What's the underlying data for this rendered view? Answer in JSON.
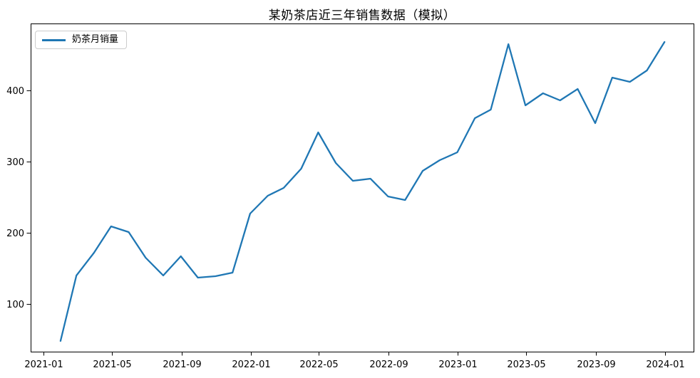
{
  "page": {
    "background": "#ffffff"
  },
  "chart_data": {
    "type": "line",
    "title": "某奶茶店近三年销售数据（模拟）",
    "xlabel": "",
    "ylabel": "",
    "grid": false,
    "legend_position": "upper-left",
    "line_color": "#1f77b4",
    "y_ticks": [
      100,
      200,
      300,
      400
    ],
    "x_ticks": [
      "2021-01",
      "2021-05",
      "2021-09",
      "2022-01",
      "2022-05",
      "2022-09",
      "2023-01",
      "2023-05",
      "2023-09",
      "2024-01"
    ],
    "ylim": [
      33,
      494
    ],
    "x": [
      "2021-01",
      "2021-02",
      "2021-03",
      "2021-04",
      "2021-05",
      "2021-06",
      "2021-07",
      "2021-08",
      "2021-09",
      "2021-10",
      "2021-11",
      "2021-12",
      "2022-01",
      "2022-02",
      "2022-03",
      "2022-04",
      "2022-05",
      "2022-06",
      "2022-07",
      "2022-08",
      "2022-09",
      "2022-10",
      "2022-11",
      "2022-12",
      "2023-01",
      "2023-02",
      "2023-03",
      "2023-04",
      "2023-05",
      "2023-06",
      "2023-07",
      "2023-08",
      "2023-09",
      "2023-10",
      "2023-11",
      "2023-12"
    ],
    "series": [
      {
        "name": "奶茶月销量",
        "color": "#1f77b4",
        "values": [
          48,
          140,
          172,
          209,
          201,
          165,
          140,
          167,
          137,
          139,
          144,
          227,
          252,
          263,
          290,
          341,
          298,
          273,
          276,
          251,
          246,
          287,
          302,
          313,
          361,
          373,
          465,
          379,
          396,
          386,
          402,
          354,
          418,
          412,
          428,
          468
        ]
      }
    ]
  }
}
